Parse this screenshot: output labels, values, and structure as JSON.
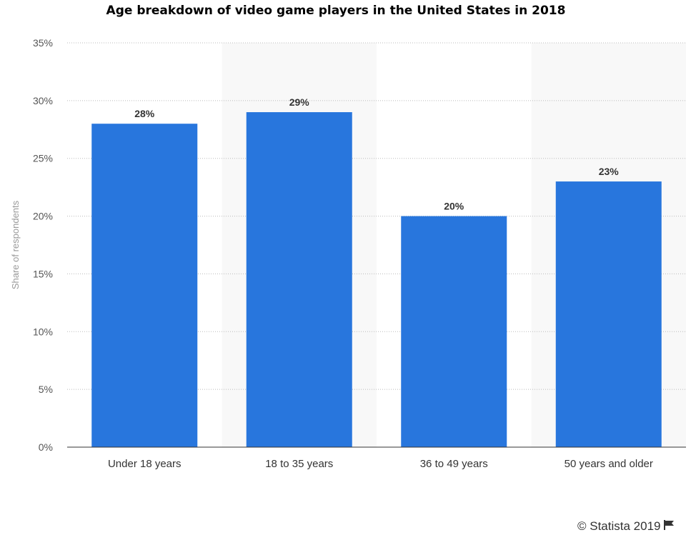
{
  "chart_data": {
    "type": "bar",
    "title": "Age breakdown of video game players in the United States in 2018",
    "ylabel": "Share of respondents",
    "xlabel": "",
    "categories": [
      "Under 18 years",
      "18 to 35 years",
      "36 to 49 years",
      "50 years and older"
    ],
    "values": [
      28,
      29,
      20,
      23
    ],
    "data_labels": [
      "28%",
      "29%",
      "20%",
      "23%"
    ],
    "ylim": [
      0,
      35
    ],
    "yticks": [
      "0%",
      "5%",
      "10%",
      "15%",
      "20%",
      "25%",
      "30%",
      "35%"
    ],
    "grid": true,
    "legend": "none",
    "bar_color": "#2876dd",
    "band_color": "#f8f8f8"
  },
  "footer": {
    "credit": "© Statista 2019",
    "flag_icon": "flag-icon"
  }
}
